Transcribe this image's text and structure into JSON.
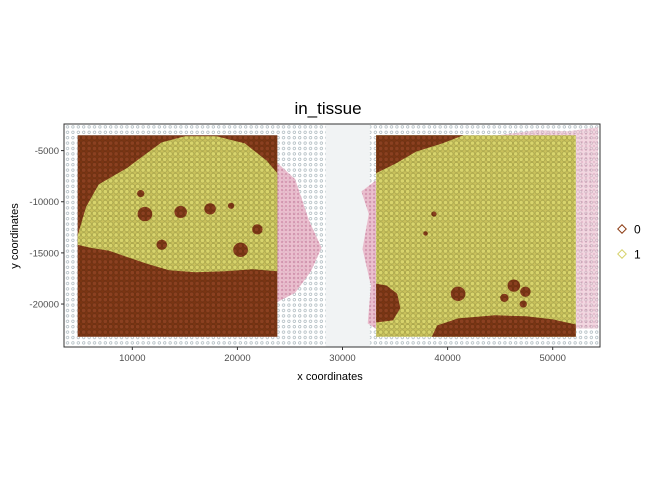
{
  "chart_data": {
    "type": "scatter",
    "title": "in_tissue",
    "xlabel": "x coordinates",
    "ylabel": "y coordinates",
    "xlim": [
      3500,
      54500
    ],
    "ylim": [
      -24200,
      -2400
    ],
    "x_ticks": [
      10000,
      20000,
      30000,
      40000,
      50000
    ],
    "y_ticks": [
      -5000,
      -10000,
      -15000,
      -20000
    ],
    "x_tick_labels": [
      "10000",
      "20000",
      "30000",
      "40000",
      "50000"
    ],
    "y_tick_labels": [
      "-5000",
      "-10000",
      "-15000",
      "-20000"
    ],
    "grid": false,
    "legend_position": "right",
    "series": [
      {
        "name": "0",
        "color": "#8b3a12",
        "marker": "diamond-open"
      },
      {
        "name": "1",
        "color": "#d6d26a",
        "marker": "diamond-open"
      }
    ],
    "spot_grid": {
      "left": {
        "x_range": [
          4800,
          23800
        ],
        "y_range": [
          -23200,
          -3500
        ]
      },
      "right": {
        "x_range": [
          33200,
          52200
        ],
        "y_range": [
          -23200,
          -3500
        ]
      }
    },
    "tissue_regions": {
      "left_in_tissue_outline": [
        [
          4800,
          -13300
        ],
        [
          5600,
          -10500
        ],
        [
          6800,
          -8300
        ],
        [
          9500,
          -6700
        ],
        [
          10800,
          -5700
        ],
        [
          12800,
          -4200
        ],
        [
          15000,
          -3600
        ],
        [
          18000,
          -3600
        ],
        [
          20700,
          -4300
        ],
        [
          22800,
          -6000
        ],
        [
          23800,
          -7200
        ],
        [
          23800,
          -16800
        ],
        [
          21500,
          -16600
        ],
        [
          18800,
          -16800
        ],
        [
          16000,
          -16900
        ],
        [
          13500,
          -16700
        ],
        [
          11500,
          -16100
        ],
        [
          9500,
          -15400
        ],
        [
          7800,
          -14800
        ],
        [
          6000,
          -14500
        ],
        [
          4800,
          -14200
        ]
      ],
      "left_out_spots_in_tissue": [
        [
          11200,
          -11200,
          700
        ],
        [
          14600,
          -11000,
          600
        ],
        [
          17400,
          -10700,
          550
        ],
        [
          12800,
          -14200,
          500
        ],
        [
          20300,
          -14700,
          700
        ],
        [
          21900,
          -12700,
          500
        ],
        [
          10800,
          -9200,
          350
        ],
        [
          19400,
          -10400,
          300
        ]
      ],
      "right_out_top_outline": [
        [
          33200,
          -3500
        ],
        [
          41500,
          -3500
        ],
        [
          39500,
          -4300
        ],
        [
          37000,
          -5100
        ],
        [
          35000,
          -6300
        ],
        [
          33200,
          -7200
        ]
      ],
      "right_out_bottom_outline": [
        [
          38500,
          -23200
        ],
        [
          39000,
          -22100
        ],
        [
          41000,
          -21400
        ],
        [
          44500,
          -21100
        ],
        [
          47500,
          -21200
        ],
        [
          50000,
          -21500
        ],
        [
          52200,
          -22000
        ],
        [
          52200,
          -23200
        ]
      ],
      "right_out_left_bump": [
        [
          33200,
          -18000
        ],
        [
          34200,
          -18200
        ],
        [
          35200,
          -19000
        ],
        [
          35500,
          -20400
        ],
        [
          34800,
          -21600
        ],
        [
          33200,
          -21800
        ]
      ],
      "right_out_spots_in_tissue": [
        [
          41000,
          -19000,
          700
        ],
        [
          46300,
          -18200,
          600
        ],
        [
          47400,
          -18800,
          500
        ],
        [
          45400,
          -19400,
          400
        ],
        [
          47200,
          -20000,
          350
        ],
        [
          38700,
          -11200,
          250
        ],
        [
          37900,
          -13100,
          220
        ]
      ],
      "tissue_overlay_left_right_edge": [
        [
          23800,
          -6200
        ],
        [
          25500,
          -7800
        ],
        [
          26800,
          -11800
        ],
        [
          28000,
          -14500
        ],
        [
          27000,
          -16800
        ],
        [
          25500,
          -18900
        ],
        [
          23800,
          -19800
        ]
      ],
      "tissue_overlay_right_left_edge": [
        [
          33200,
          -7900
        ],
        [
          31800,
          -9000
        ],
        [
          32500,
          -11200
        ],
        [
          31900,
          -14600
        ],
        [
          32700,
          -18200
        ],
        [
          32400,
          -21900
        ],
        [
          33200,
          -22400
        ]
      ],
      "tissue_overlay_right_top": [
        [
          44000,
          -3600
        ],
        [
          48500,
          -3000
        ],
        [
          51500,
          -3100
        ],
        [
          54300,
          -2700
        ],
        [
          54300,
          -22400
        ],
        [
          52200,
          -22400
        ],
        [
          52200,
          -3600
        ]
      ]
    }
  }
}
